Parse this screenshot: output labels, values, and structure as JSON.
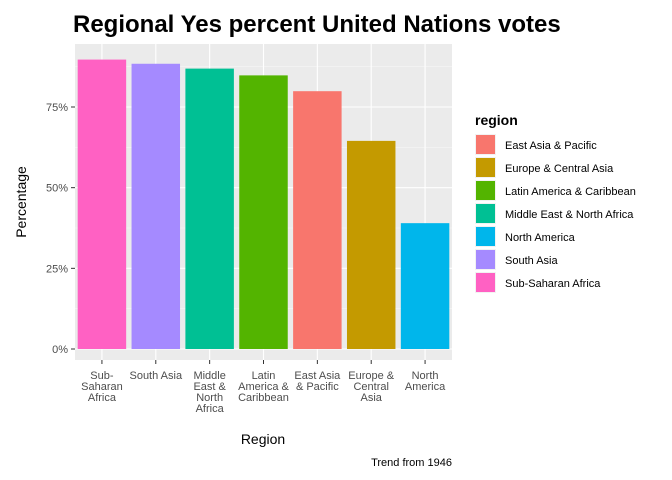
{
  "chart_data": {
    "type": "bar",
    "title": "Regional Yes percent United Nations votes",
    "xlabel": "Region",
    "ylabel": "Percentage",
    "caption": "Trend from 1946",
    "ylim": [
      0,
      0.94
    ],
    "y_ticks": [
      0,
      0.25,
      0.5,
      0.75
    ],
    "y_tick_labels": [
      "0%",
      "25%",
      "50%",
      "75%"
    ],
    "grid": true,
    "legend_position": "right",
    "categories": [
      "Sub-Saharan Africa",
      "South Asia",
      "Middle East & North Africa",
      "Latin America & Caribbean",
      "East Asia & Pacific",
      "Europe & Central Asia",
      "North America"
    ],
    "category_tick_lines": [
      [
        "Sub-",
        "Saharan",
        "Africa"
      ],
      [
        "South Asia"
      ],
      [
        "Middle",
        "East &",
        "North",
        "Africa"
      ],
      [
        "Latin",
        "America &",
        "Caribbean"
      ],
      [
        "East Asia",
        "& Pacific"
      ],
      [
        "Europe &",
        "Central",
        "Asia"
      ],
      [
        "North",
        "America"
      ]
    ],
    "values": [
      0.897,
      0.884,
      0.869,
      0.848,
      0.799,
      0.645,
      0.39
    ],
    "bar_colors": [
      "#FF61C3",
      "#A58AFF",
      "#00C094",
      "#53B400",
      "#F8766D",
      "#C49A00",
      "#00B6EB"
    ],
    "legend": {
      "title": "region",
      "entries": [
        {
          "name": "East Asia & Pacific",
          "color": "#F8766D"
        },
        {
          "name": "Europe & Central Asia",
          "color": "#C49A00"
        },
        {
          "name": "Latin America & Caribbean",
          "color": "#53B400"
        },
        {
          "name": "Middle East & North Africa",
          "color": "#00C094"
        },
        {
          "name": "North America",
          "color": "#00B6EB"
        },
        {
          "name": "South Asia",
          "color": "#A58AFF"
        },
        {
          "name": "Sub-Saharan Africa",
          "color": "#FF61C3"
        }
      ]
    }
  }
}
